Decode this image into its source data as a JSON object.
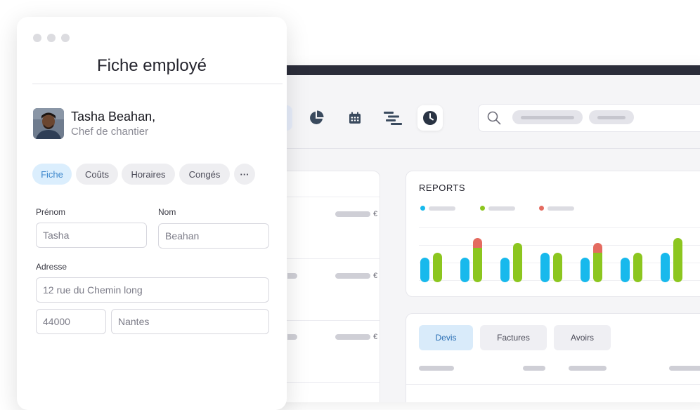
{
  "employee_card": {
    "title": "Fiche employé",
    "name": "Tasha Beahan,",
    "role": "Chef de chantier",
    "tabs": [
      "Fiche",
      "Coûts",
      "Horaires",
      "Congés"
    ],
    "more_label": "···",
    "form": {
      "first_name_label": "Prénom",
      "first_name_value": "Tasha",
      "last_name_label": "Nom",
      "last_name_value": "Beahan",
      "address_label": "Adresse",
      "street_value": "12 rue du Chemin long",
      "postcode_value": "44000",
      "city_value": "Nantes"
    }
  },
  "background_app": {
    "toolbar_icons": [
      "grid-icon",
      "pie-chart-icon",
      "calendar-icon",
      "gantt-icon",
      "clock-icon",
      "search-icon"
    ],
    "currency_symbol": "€",
    "reports": {
      "title": "REPORTS",
      "series_colors": [
        "#18b9ec",
        "#8cc61f",
        "#e46b60"
      ]
    },
    "document_tabs": [
      "Devis",
      "Factures",
      "Avoirs"
    ]
  },
  "chart_data": {
    "type": "bar",
    "title": "REPORTS",
    "series": [
      {
        "color": "#18b9ec",
        "values": [
          5,
          5,
          5,
          6,
          5,
          5,
          6
        ]
      },
      {
        "color": "#8cc61f",
        "values": [
          6,
          7,
          8,
          6,
          6,
          6,
          9
        ]
      },
      {
        "color": "#e46b60",
        "values": [
          0,
          2,
          0,
          0,
          2,
          0,
          0
        ]
      }
    ],
    "stacked_second_and_third": true
  }
}
